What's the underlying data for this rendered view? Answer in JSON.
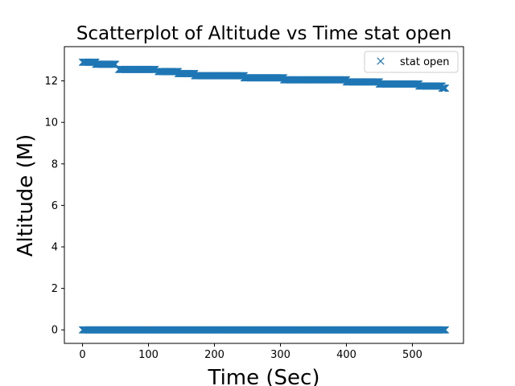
{
  "chart_data": {
    "type": "scatter",
    "title": "Scatterplot of Altitude vs Time stat open",
    "xlabel": "Time (Sec)",
    "ylabel": "Altitude (M)",
    "xlim": [
      -27.5,
      577.5
    ],
    "ylim": [
      -0.65,
      13.65
    ],
    "xticks": [
      0,
      100,
      200,
      300,
      400,
      500
    ],
    "yticks": [
      0,
      2,
      4,
      6,
      8,
      10,
      12
    ],
    "grid": false,
    "legend": {
      "position": "top-right",
      "entries": [
        "stat open"
      ]
    },
    "marker": "x",
    "color": "#1f77b4",
    "series": [
      {
        "name": "stat open",
        "segments": [
          {
            "x_start": 0,
            "x_end": 20,
            "y": 12.9
          },
          {
            "x_start": 20,
            "x_end": 50,
            "y": 12.8
          },
          {
            "x_start": 55,
            "x_end": 110,
            "y": 12.55
          },
          {
            "x_start": 115,
            "x_end": 145,
            "y": 12.45
          },
          {
            "x_start": 145,
            "x_end": 170,
            "y": 12.35
          },
          {
            "x_start": 170,
            "x_end": 245,
            "y": 12.25
          },
          {
            "x_start": 245,
            "x_end": 305,
            "y": 12.15
          },
          {
            "x_start": 305,
            "x_end": 400,
            "y": 12.05
          },
          {
            "x_start": 400,
            "x_end": 450,
            "y": 11.95
          },
          {
            "x_start": 450,
            "x_end": 510,
            "y": 11.85
          },
          {
            "x_start": 510,
            "x_end": 545,
            "y": 11.75
          },
          {
            "x_start": 545,
            "x_end": 550,
            "y": 11.65
          },
          {
            "x_start": 0,
            "x_end": 550,
            "y": 0
          }
        ]
      }
    ]
  }
}
